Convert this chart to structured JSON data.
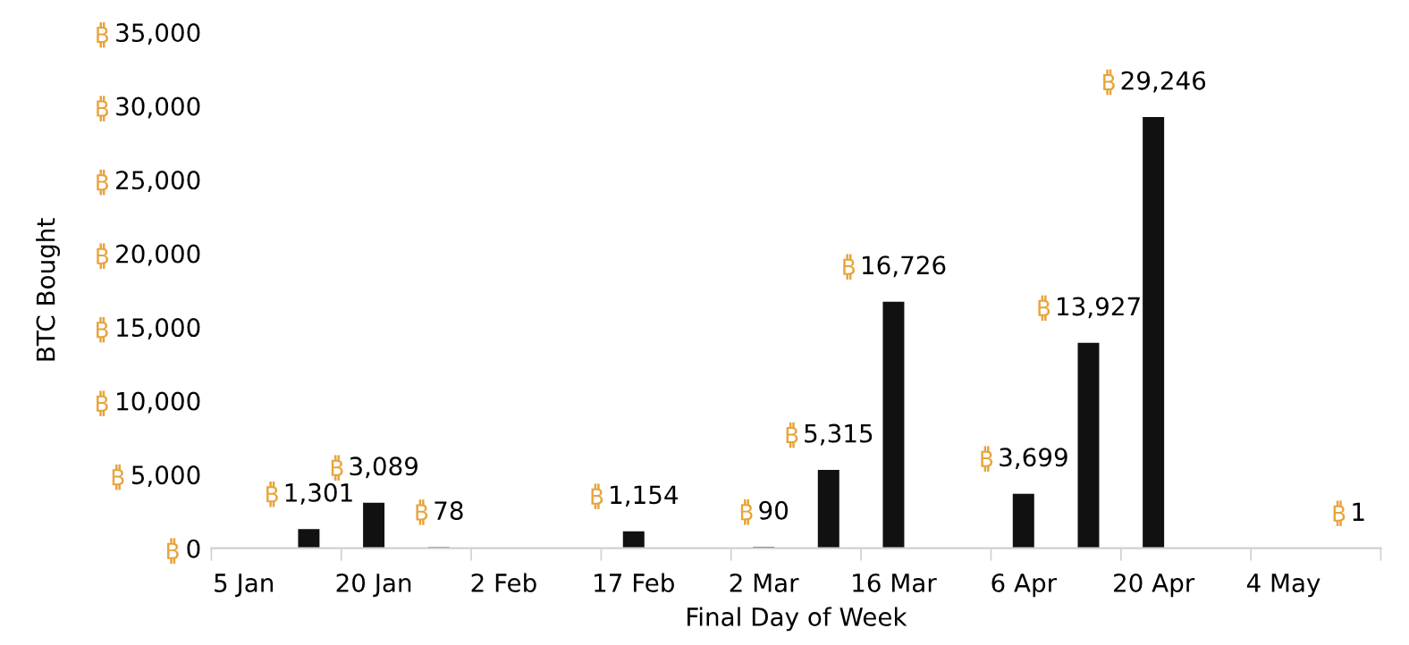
{
  "chart_data": {
    "type": "bar",
    "xlabel": "Final Day of Week",
    "ylabel": "BTC Bought",
    "categories": [
      "5 Jan",
      null,
      "20 Jan",
      null,
      "2 Feb",
      null,
      "17 Feb",
      null,
      "2 Mar",
      null,
      "16 Mar",
      null,
      "6 Apr",
      null,
      "20 Apr",
      null,
      "4 May",
      null
    ],
    "values": [
      null,
      1301,
      3089,
      78,
      null,
      null,
      1154,
      null,
      90,
      5315,
      16726,
      null,
      3699,
      13927,
      29246,
      null,
      null,
      1
    ],
    "value_labels": [
      null,
      "1,301",
      "3,089",
      "78",
      null,
      null,
      "1,154",
      null,
      "90",
      "5,315",
      "16,726",
      null,
      "3,699",
      "13,927",
      "29,246",
      null,
      null,
      "1"
    ],
    "color": "#111111",
    "ylim": [
      0,
      35000
    ],
    "yticks": [
      0,
      {
        "value": 5000,
        "label": "5,000"
      },
      {
        "value": 10000,
        "label": "10,000"
      },
      {
        "value": 15000,
        "label": "15,000"
      },
      {
        "value": 20000,
        "label": "20,000"
      },
      {
        "value": 25000,
        "label": "25,000"
      },
      {
        "value": 30000,
        "label": "30,000"
      },
      {
        "value": 35000,
        "label": "35,000"
      }
    ],
    "grid": false,
    "legend": false
  }
}
